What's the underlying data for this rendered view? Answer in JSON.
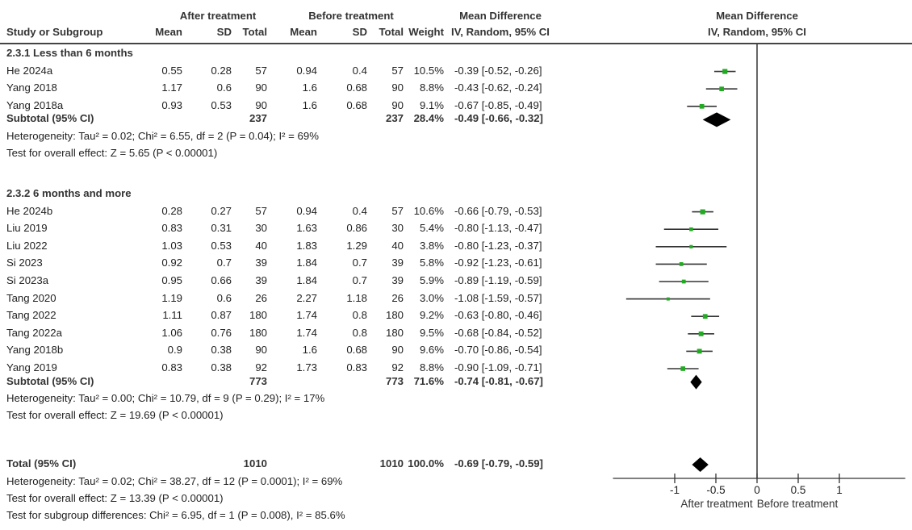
{
  "header": {
    "group_after": "After treatment",
    "group_before": "Before treatment",
    "md_title": "Mean Difference",
    "md_method": "IV, Random, 95% CI",
    "plot_title": "Mean Difference",
    "plot_method": "IV, Random, 95% CI",
    "col_study": "Study or Subgroup",
    "col_mean1": "Mean",
    "col_sd1": "SD",
    "col_total1": "Total",
    "col_mean2": "Mean",
    "col_sd2": "SD",
    "col_total2": "Total",
    "col_weight": "Weight"
  },
  "subgroups": [
    {
      "title": "2.3.1 Less than 6 months",
      "studies": [
        {
          "name": "He 2024a",
          "m1": "0.55",
          "sd1": "0.28",
          "n1": "57",
          "m2": "0.94",
          "sd2": "0.4",
          "n2": "57",
          "weight": "10.5%",
          "ci_text": "-0.39 [-0.52, -0.26]",
          "md": -0.39,
          "lo": -0.52,
          "hi": -0.26,
          "w": 10.5
        },
        {
          "name": "Yang 2018",
          "m1": "1.17",
          "sd1": "0.6",
          "n1": "90",
          "m2": "1.6",
          "sd2": "0.68",
          "n2": "90",
          "weight": "8.8%",
          "ci_text": "-0.43 [-0.62, -0.24]",
          "md": -0.43,
          "lo": -0.62,
          "hi": -0.24,
          "w": 8.8
        },
        {
          "name": "Yang 2018a",
          "m1": "0.93",
          "sd1": "0.53",
          "n1": "90",
          "m2": "1.6",
          "sd2": "0.68",
          "n2": "90",
          "weight": "9.1%",
          "ci_text": "-0.67 [-0.85, -0.49]",
          "md": -0.67,
          "lo": -0.85,
          "hi": -0.49,
          "w": 9.1
        }
      ],
      "subtotal": {
        "label": "Subtotal (95% CI)",
        "n1": "237",
        "n2": "237",
        "weight": "28.4%",
        "ci_text": "-0.49 [-0.66, -0.32]",
        "md": -0.49,
        "lo": -0.66,
        "hi": -0.32
      },
      "heterogeneity": "Heterogeneity: Tau² = 0.02; Chi² = 6.55, df = 2 (P = 0.04); I² = 69%",
      "overall": "Test for overall effect: Z = 5.65 (P < 0.00001)"
    },
    {
      "title": "2.3.2 6 months and more",
      "studies": [
        {
          "name": "He 2024b",
          "m1": "0.28",
          "sd1": "0.27",
          "n1": "57",
          "m2": "0.94",
          "sd2": "0.4",
          "n2": "57",
          "weight": "10.6%",
          "ci_text": "-0.66 [-0.79, -0.53]",
          "md": -0.66,
          "lo": -0.79,
          "hi": -0.53,
          "w": 10.6
        },
        {
          "name": "Liu 2019",
          "m1": "0.83",
          "sd1": "0.31",
          "n1": "30",
          "m2": "1.63",
          "sd2": "0.86",
          "n2": "30",
          "weight": "5.4%",
          "ci_text": "-0.80 [-1.13, -0.47]",
          "md": -0.8,
          "lo": -1.13,
          "hi": -0.47,
          "w": 5.4
        },
        {
          "name": "Liu 2022",
          "m1": "1.03",
          "sd1": "0.53",
          "n1": "40",
          "m2": "1.83",
          "sd2": "1.29",
          "n2": "40",
          "weight": "3.8%",
          "ci_text": "-0.80 [-1.23, -0.37]",
          "md": -0.8,
          "lo": -1.23,
          "hi": -0.37,
          "w": 3.8
        },
        {
          "name": "Si 2023",
          "m1": "0.92",
          "sd1": "0.7",
          "n1": "39",
          "m2": "1.84",
          "sd2": "0.7",
          "n2": "39",
          "weight": "5.8%",
          "ci_text": "-0.92 [-1.23, -0.61]",
          "md": -0.92,
          "lo": -1.23,
          "hi": -0.61,
          "w": 5.8
        },
        {
          "name": "Si 2023a",
          "m1": "0.95",
          "sd1": "0.66",
          "n1": "39",
          "m2": "1.84",
          "sd2": "0.7",
          "n2": "39",
          "weight": "5.9%",
          "ci_text": "-0.89 [-1.19, -0.59]",
          "md": -0.89,
          "lo": -1.19,
          "hi": -0.59,
          "w": 5.9
        },
        {
          "name": "Tang 2020",
          "m1": "1.19",
          "sd1": "0.6",
          "n1": "26",
          "m2": "2.27",
          "sd2": "1.18",
          "n2": "26",
          "weight": "3.0%",
          "ci_text": "-1.08 [-1.59, -0.57]",
          "md": -1.08,
          "lo": -1.59,
          "hi": -0.57,
          "w": 3.0
        },
        {
          "name": "Tang 2022",
          "m1": "1.11",
          "sd1": "0.87",
          "n1": "180",
          "m2": "1.74",
          "sd2": "0.8",
          "n2": "180",
          "weight": "9.2%",
          "ci_text": "-0.63 [-0.80, -0.46]",
          "md": -0.63,
          "lo": -0.8,
          "hi": -0.46,
          "w": 9.2
        },
        {
          "name": "Tang 2022a",
          "m1": "1.06",
          "sd1": "0.76",
          "n1": "180",
          "m2": "1.74",
          "sd2": "0.8",
          "n2": "180",
          "weight": "9.5%",
          "ci_text": "-0.68 [-0.84, -0.52]",
          "md": -0.68,
          "lo": -0.84,
          "hi": -0.52,
          "w": 9.5
        },
        {
          "name": "Yang 2018b",
          "m1": "0.9",
          "sd1": "0.38",
          "n1": "90",
          "m2": "1.6",
          "sd2": "0.68",
          "n2": "90",
          "weight": "9.6%",
          "ci_text": "-0.70 [-0.86, -0.54]",
          "md": -0.7,
          "lo": -0.86,
          "hi": -0.54,
          "w": 9.6
        },
        {
          "name": "Yang 2019",
          "m1": "0.83",
          "sd1": "0.38",
          "n1": "92",
          "m2": "1.73",
          "sd2": "0.83",
          "n2": "92",
          "weight": "8.8%",
          "ci_text": "-0.90 [-1.09, -0.71]",
          "md": -0.9,
          "lo": -1.09,
          "hi": -0.71,
          "w": 8.8
        }
      ],
      "subtotal": {
        "label": "Subtotal (95% CI)",
        "n1": "773",
        "n2": "773",
        "weight": "71.6%",
        "ci_text": "-0.74 [-0.81, -0.67]",
        "md": -0.74,
        "lo": -0.81,
        "hi": -0.67
      },
      "heterogeneity": "Heterogeneity: Tau² = 0.00; Chi² = 10.79, df = 9 (P = 0.29); I² = 17%",
      "overall": "Test for overall effect: Z = 19.69 (P < 0.00001)"
    }
  ],
  "total": {
    "label": "Total (95% CI)",
    "n1": "1010",
    "n2": "1010",
    "weight": "100.0%",
    "ci_text": "-0.69 [-0.79, -0.59]",
    "md": -0.69,
    "lo": -0.79,
    "hi": -0.59,
    "heterogeneity": "Heterogeneity: Tau² = 0.02; Chi² = 38.27, df = 12 (P = 0.0001); I² = 69%",
    "overall": "Test for overall effect: Z = 13.39 (P < 0.00001)",
    "subgroup_diff": "Test for subgroup differences: Chi² = 6.95, df = 1 (P = 0.008), I² = 85.6%"
  },
  "chart_data": {
    "type": "forest",
    "title": "Mean Difference IV, Random, 95% CI",
    "xlim": [
      -1.75,
      1.8
    ],
    "xticks": [
      -1,
      -0.5,
      0,
      0.5,
      1
    ],
    "xtick_labels": [
      "-1",
      "-0.5",
      "0",
      "0.5",
      "1"
    ],
    "xlabel_left": "After treatment",
    "xlabel_right": "Before treatment",
    "null_line": 0,
    "study_marker_color": "#22aa22",
    "diamond_color": "#000000"
  }
}
